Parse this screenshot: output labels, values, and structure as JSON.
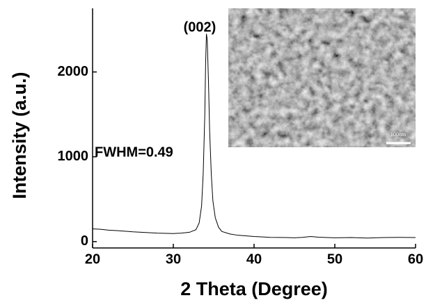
{
  "chart_data": {
    "type": "line",
    "x_label": "2 Theta (Degree)",
    "y_label": "Intensity (a.u.)",
    "annotations": [
      "(002)",
      "FWHM=0.49"
    ],
    "inset_scale_label": "100nm",
    "xlim": [
      20,
      60
    ],
    "xticks": [
      20,
      30,
      40,
      50,
      60
    ],
    "ylim": [
      -75,
      2750
    ],
    "yticks": [
      0,
      1000,
      2000
    ],
    "series": [
      {
        "color": "#000000",
        "x": [
          20,
          21,
          22,
          23,
          25,
          27,
          28,
          30,
          31,
          32,
          32.8,
          33.2,
          33.5,
          33.7,
          33.9,
          34.0,
          34.1,
          34.2,
          34.35,
          34.5,
          34.7,
          34.9,
          35.2,
          35.6,
          36,
          37,
          38,
          40,
          42,
          44,
          45,
          46,
          47,
          48,
          50,
          52,
          54,
          55,
          56,
          58,
          60
        ],
        "values": [
          150,
          145,
          135,
          130,
          115,
          105,
          100,
          95,
          100,
          110,
          140,
          220,
          420,
          800,
          1500,
          2100,
          2450,
          2380,
          1900,
          1300,
          800,
          480,
          280,
          170,
          120,
          90,
          75,
          60,
          50,
          48,
          45,
          50,
          60,
          52,
          45,
          48,
          42,
          45,
          48,
          50,
          48
        ]
      }
    ]
  }
}
